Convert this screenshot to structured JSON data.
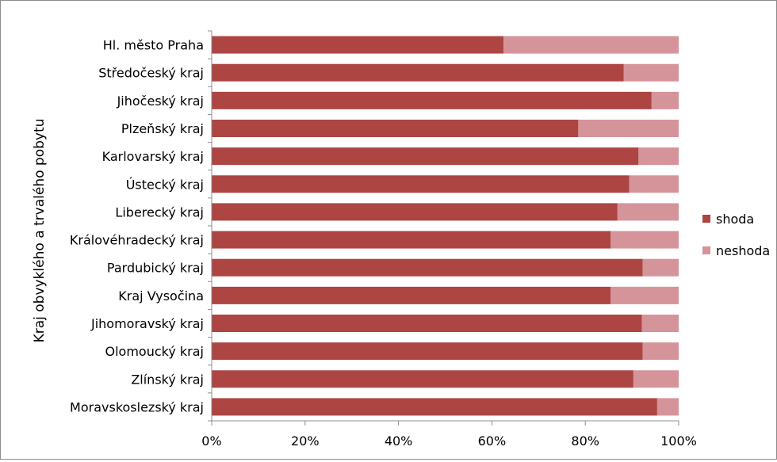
{
  "chart_data": {
    "type": "bar",
    "orientation": "horizontal",
    "stacked": "percent",
    "ylabel": "Kraj obvyklého a trvalého pobytu",
    "xlabel": "",
    "xlim": [
      0,
      100
    ],
    "x_ticks": [
      "0%",
      "20%",
      "40%",
      "60%",
      "80%",
      "100%"
    ],
    "grid": false,
    "legend_position": "right",
    "categories": [
      "Hl. město Praha",
      "Středočeský kraj",
      "Jihočeský kraj",
      "Plzeňský kraj",
      "Karlovarský kraj",
      "Ústecký kraj",
      "Liberecký kraj",
      "Královéhradecký kraj",
      "Pardubický kraj",
      "Kraj Vysočina",
      "Jihomoravský kraj",
      "Olomoucký kraj",
      "Zlínský kraj",
      "Moravskoslezský kraj"
    ],
    "series": [
      {
        "name": "shoda",
        "color": "#ad4543",
        "values": [
          62.5,
          88.2,
          94.2,
          78.5,
          91.4,
          89.4,
          86.9,
          85.4,
          92.3,
          85.4,
          92.1,
          92.3,
          90.3,
          95.4
        ]
      },
      {
        "name": "neshoda",
        "color": "#d5949a",
        "values": [
          37.5,
          11.8,
          5.8,
          21.5,
          8.6,
          10.6,
          13.1,
          14.6,
          7.7,
          14.6,
          7.9,
          7.7,
          9.7,
          4.6
        ]
      }
    ]
  }
}
